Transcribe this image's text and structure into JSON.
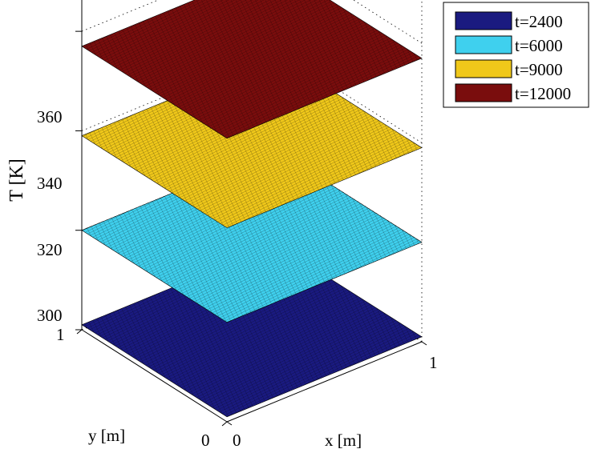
{
  "chart_data": {
    "type": "surface",
    "zlabel": "T [K]",
    "xlabel": "x [m]",
    "ylabel": "y [m]",
    "xlim": [
      0,
      1
    ],
    "ylim": [
      0,
      1
    ],
    "zlim": [
      300,
      370
    ],
    "x_ticks": [
      "0",
      "1"
    ],
    "y_ticks": [
      "0",
      "1"
    ],
    "z_ticks": [
      {
        "value": 300,
        "label": "300"
      },
      {
        "value": 320,
        "label": "320"
      },
      {
        "value": 340,
        "label": "340"
      },
      {
        "value": 360,
        "label": "360"
      }
    ],
    "series": [
      {
        "name": "t=2400",
        "value": 301,
        "color": "#1a1a80"
      },
      {
        "name": "t=6000",
        "value": 320,
        "color": "#3fd0ee"
      },
      {
        "name": "t=9000",
        "value": 339,
        "color": "#f0c81a"
      },
      {
        "name": "t=12000",
        "value": 357,
        "color": "#7a0d0d"
      }
    ],
    "legend_position": "top-right",
    "grid": true
  }
}
